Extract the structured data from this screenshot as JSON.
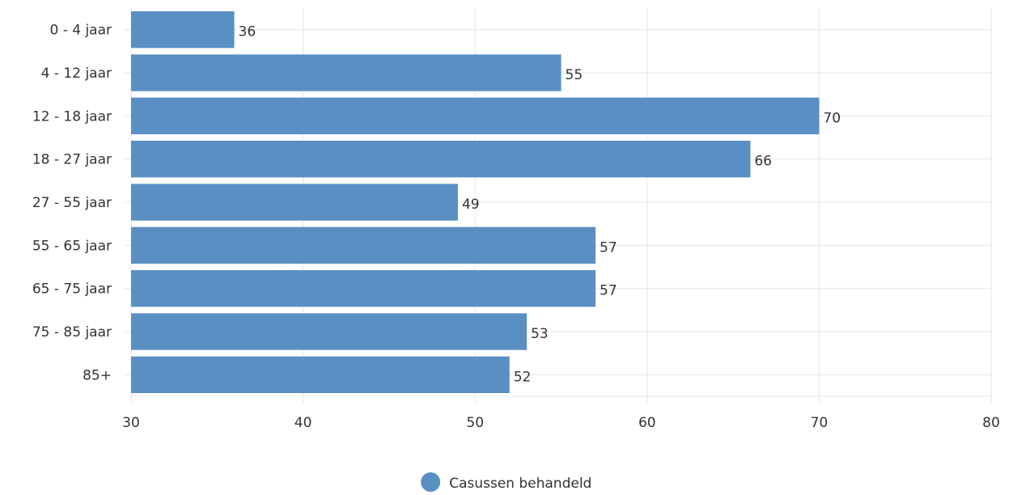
{
  "chart_data": {
    "type": "bar",
    "orientation": "horizontal",
    "categories": [
      "0 - 4 jaar",
      "4 - 12 jaar",
      "12 - 18 jaar",
      "18 - 27 jaar",
      "27 - 55 jaar",
      "55 - 65 jaar",
      "65 - 75 jaar",
      "75 - 85 jaar",
      "85+"
    ],
    "series": [
      {
        "name": "Casussen behandeld",
        "values": [
          36,
          55,
          70,
          66,
          49,
          57,
          57,
          53,
          52
        ]
      }
    ],
    "xlim": [
      30,
      80
    ],
    "xticks": [
      30,
      40,
      50,
      60,
      70,
      80
    ],
    "grid": true,
    "legend_position": "bottom-center",
    "data_labels": true,
    "colors": {
      "bar": "#5a8fc3",
      "grid": "#e3e6ef",
      "text": "#333333"
    }
  }
}
